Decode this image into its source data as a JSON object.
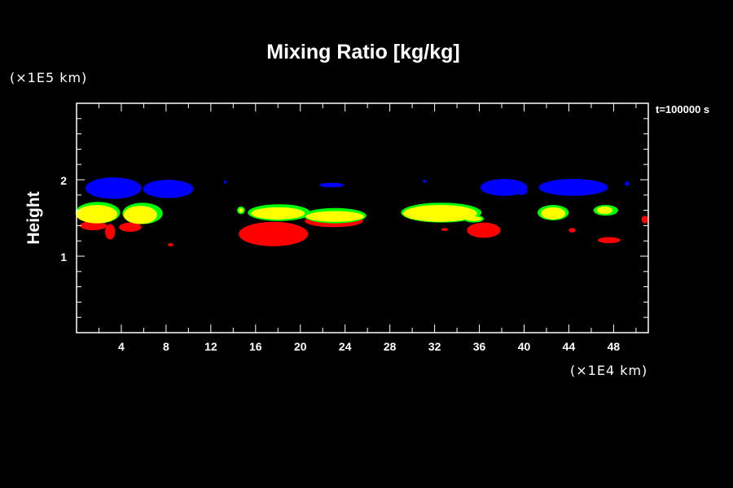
{
  "chart_data": {
    "type": "contour",
    "title": "Mixing Ratio [kg/kg]",
    "xlabel": "",
    "ylabel": "Height",
    "x_unit": "(×1E4 km)",
    "y_unit": "(×1E5 km)",
    "time_label": "t=100000 s",
    "xlim": [
      0,
      51.1
    ],
    "ylim": [
      0,
      3.0
    ],
    "xticks": [
      4,
      8,
      12,
      16,
      20,
      24,
      28,
      32,
      36,
      40,
      44,
      48
    ],
    "yticks": [
      1,
      2
    ],
    "x_minor_step": 2,
    "y_minor_step": 0.2,
    "grid": false,
    "levels": {
      "red": "#ff0000",
      "green": "#00ff00",
      "yellow": "#ffff00",
      "blue": "#0000ff"
    },
    "regions": [
      {
        "level": "red",
        "x": 1.5,
        "y": 1.4,
        "rx": 1.2,
        "ry": 0.06
      },
      {
        "level": "red",
        "x": 3.0,
        "y": 1.32,
        "rx": 0.45,
        "ry": 0.1
      },
      {
        "level": "red",
        "x": 4.8,
        "y": 1.38,
        "rx": 1.0,
        "ry": 0.06
      },
      {
        "level": "red",
        "x": 8.4,
        "y": 1.15,
        "rx": 0.25,
        "ry": 0.02
      },
      {
        "level": "red",
        "x": 17.6,
        "y": 1.29,
        "rx": 3.1,
        "ry": 0.16
      },
      {
        "level": "red",
        "x": 23.0,
        "y": 1.46,
        "rx": 2.6,
        "ry": 0.08
      },
      {
        "level": "red",
        "x": 32.9,
        "y": 1.35,
        "rx": 0.3,
        "ry": 0.02
      },
      {
        "level": "red",
        "x": 36.4,
        "y": 1.34,
        "rx": 1.5,
        "ry": 0.1
      },
      {
        "level": "red",
        "x": 44.3,
        "y": 1.34,
        "rx": 0.3,
        "ry": 0.03
      },
      {
        "level": "red",
        "x": 47.6,
        "y": 1.21,
        "rx": 1.0,
        "ry": 0.04
      },
      {
        "level": "red",
        "x": 50.8,
        "y": 1.48,
        "rx": 0.3,
        "ry": 0.05
      },
      {
        "level": "green",
        "x": 1.9,
        "y": 1.57,
        "rx": 2.0,
        "ry": 0.14
      },
      {
        "level": "green",
        "x": 5.9,
        "y": 1.56,
        "rx": 1.8,
        "ry": 0.14
      },
      {
        "level": "green",
        "x": 14.7,
        "y": 1.6,
        "rx": 0.35,
        "ry": 0.05
      },
      {
        "level": "green",
        "x": 18.1,
        "y": 1.57,
        "rx": 2.8,
        "ry": 0.11
      },
      {
        "level": "green",
        "x": 23.1,
        "y": 1.53,
        "rx": 2.8,
        "ry": 0.1
      },
      {
        "level": "green",
        "x": 32.6,
        "y": 1.57,
        "rx": 3.6,
        "ry": 0.13
      },
      {
        "level": "green",
        "x": 35.5,
        "y": 1.49,
        "rx": 0.9,
        "ry": 0.05
      },
      {
        "level": "green",
        "x": 42.6,
        "y": 1.57,
        "rx": 1.4,
        "ry": 0.1
      },
      {
        "level": "green",
        "x": 47.3,
        "y": 1.6,
        "rx": 1.1,
        "ry": 0.07
      },
      {
        "level": "yellow",
        "x": 1.8,
        "y": 1.55,
        "rx": 1.85,
        "ry": 0.12
      },
      {
        "level": "yellow",
        "x": 5.7,
        "y": 1.54,
        "rx": 1.5,
        "ry": 0.12
      },
      {
        "level": "yellow",
        "x": 14.7,
        "y": 1.6,
        "rx": 0.2,
        "ry": 0.03
      },
      {
        "level": "yellow",
        "x": 18.0,
        "y": 1.56,
        "rx": 2.4,
        "ry": 0.08
      },
      {
        "level": "yellow",
        "x": 23.1,
        "y": 1.52,
        "rx": 2.6,
        "ry": 0.07
      },
      {
        "level": "yellow",
        "x": 32.5,
        "y": 1.56,
        "rx": 3.3,
        "ry": 0.11
      },
      {
        "level": "yellow",
        "x": 35.5,
        "y": 1.49,
        "rx": 0.7,
        "ry": 0.03
      },
      {
        "level": "yellow",
        "x": 42.6,
        "y": 1.56,
        "rx": 1.1,
        "ry": 0.08
      },
      {
        "level": "yellow",
        "x": 47.2,
        "y": 1.6,
        "rx": 0.7,
        "ry": 0.05
      },
      {
        "level": "blue",
        "x": 3.3,
        "y": 1.89,
        "rx": 2.5,
        "ry": 0.14
      },
      {
        "level": "blue",
        "x": 8.2,
        "y": 1.88,
        "rx": 2.25,
        "ry": 0.12
      },
      {
        "level": "blue",
        "x": 13.3,
        "y": 1.97,
        "rx": 0.15,
        "ry": 0.02
      },
      {
        "level": "blue",
        "x": 22.8,
        "y": 1.93,
        "rx": 1.1,
        "ry": 0.03
      },
      {
        "level": "blue",
        "x": 31.1,
        "y": 1.98,
        "rx": 0.15,
        "ry": 0.02
      },
      {
        "level": "blue",
        "x": 38.2,
        "y": 1.9,
        "rx": 2.1,
        "ry": 0.11
      },
      {
        "level": "blue",
        "x": 39.8,
        "y": 1.85,
        "rx": 0.5,
        "ry": 0.05
      },
      {
        "level": "blue",
        "x": 44.4,
        "y": 1.9,
        "rx": 3.1,
        "ry": 0.11
      },
      {
        "level": "blue",
        "x": 49.2,
        "y": 1.95,
        "rx": 0.2,
        "ry": 0.03
      }
    ]
  }
}
